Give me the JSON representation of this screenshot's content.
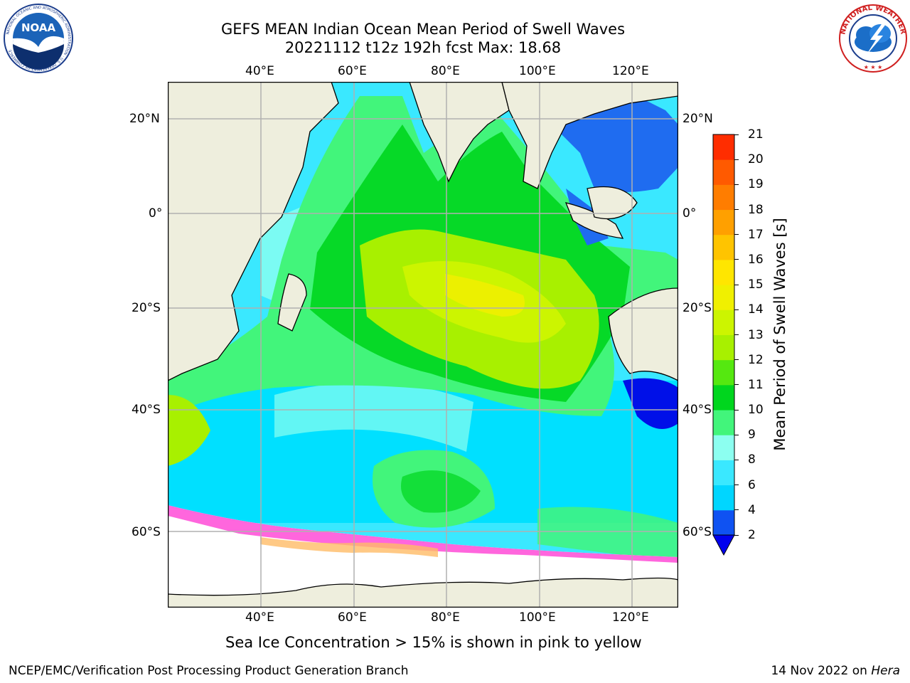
{
  "header": {
    "title_line1": "GEFS MEAN Indian Ocean Mean Period of Swell Waves",
    "title_line2": "20221112 t12z 192h fcst   Max: 18.68"
  },
  "logos": {
    "left": {
      "name": "NOAA",
      "text": "NOAA",
      "ring_text": "NATIONAL OCEANIC AND ATMOSPHERIC ADMINISTRATION · U.S. DEPARTMENT OF COMMERCE"
    },
    "right": {
      "name": "National Weather Service",
      "ring_text": "NATIONAL WEATHER SERVICE"
    }
  },
  "map": {
    "lon_labels": [
      "40°E",
      "60°E",
      "80°E",
      "100°E",
      "120°E"
    ],
    "lat_labels": [
      "20°N",
      "0°",
      "20°S",
      "40°S",
      "60°S"
    ],
    "extent": {
      "lon": [
        20,
        130
      ],
      "lat": [
        -72,
        27
      ]
    },
    "colors": {
      "land": "#eeeedd",
      "grid": "#b0b0b0",
      "frame": "#000000"
    }
  },
  "colorbar": {
    "label": "Mean Period of Swell Waves [s]",
    "ticks": [
      "2",
      "4",
      "6",
      "8",
      "9",
      "10",
      "11",
      "12",
      "13",
      "14",
      "15",
      "16",
      "17",
      "18",
      "19",
      "20",
      "21"
    ],
    "colors": [
      "#0f52f2",
      "#00d6ff",
      "#3ae8ff",
      "#8cfff0",
      "#42f57b",
      "#00d61e",
      "#55e810",
      "#a8f000",
      "#ccf500",
      "#f0f000",
      "#ffe600",
      "#ffc400",
      "#ffa000",
      "#ff7d00",
      "#ff5a00",
      "#ff2d00",
      "#ff0000"
    ],
    "under_color": "#0000ee"
  },
  "annotation": "Sea Ice Concentration > 15% is shown in pink to yellow",
  "footer": {
    "left": "NCEP/EMC/Verification Post Processing Product Generation Branch",
    "right_prefix": "14 Nov 2022 on ",
    "right_host": "Hera"
  }
}
